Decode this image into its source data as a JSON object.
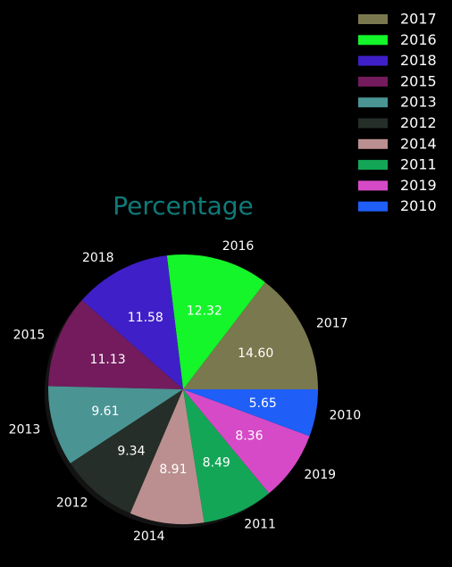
{
  "chart_data": {
    "type": "pie",
    "title": "Percentage",
    "categories": [
      "2017",
      "2016",
      "2018",
      "2015",
      "2013",
      "2012",
      "2014",
      "2011",
      "2019",
      "2010"
    ],
    "values": [
      14.6,
      12.32,
      11.58,
      11.13,
      9.61,
      9.34,
      8.91,
      8.49,
      8.36,
      5.65
    ],
    "value_labels": [
      "14.60",
      "12.32",
      "11.58",
      "11.13",
      "9.61",
      "9.34",
      "8.91",
      "8.49",
      "8.36",
      "5.65"
    ],
    "colors": [
      "#7a784e",
      "#14f52a",
      "#3f1fc7",
      "#731b5c",
      "#4a9494",
      "#252e28",
      "#bb8f8f",
      "#14a657",
      "#d64ac7",
      "#1f5ef7"
    ],
    "start_angle_deg": 0,
    "direction": "counterclockwise",
    "shadow": true,
    "legend": {
      "placement": "top-right",
      "entries": [
        "2017",
        "2016",
        "2018",
        "2015",
        "2013",
        "2012",
        "2014",
        "2011",
        "2019",
        "2010"
      ]
    }
  }
}
